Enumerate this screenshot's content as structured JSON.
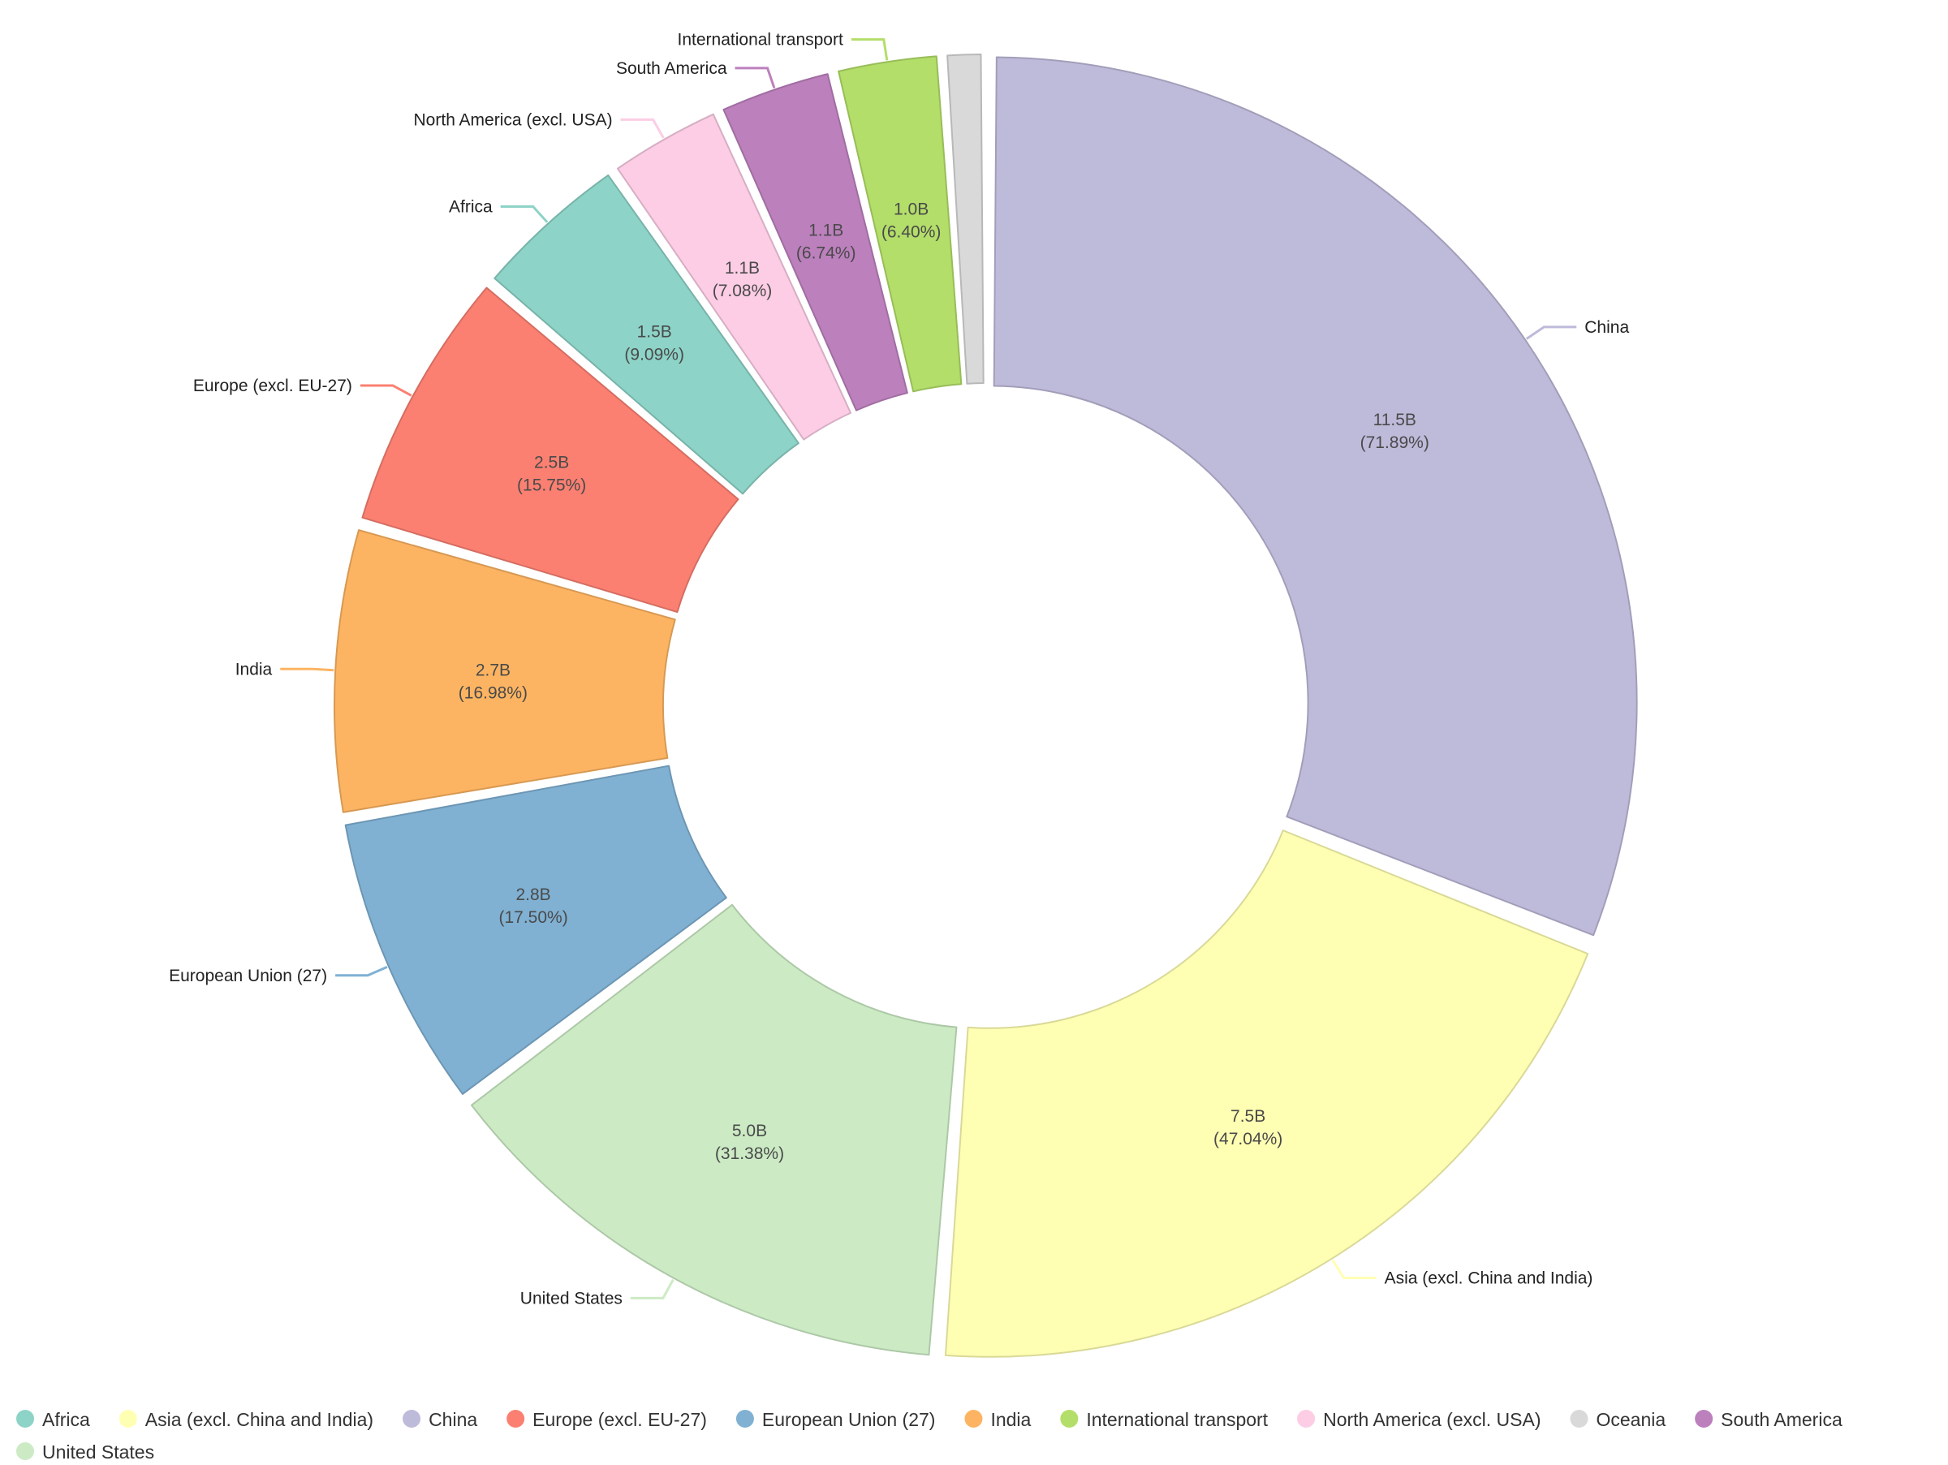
{
  "chart_data": {
    "type": "donut",
    "categories": [
      "Africa",
      "Asia (excl. China and India)",
      "China",
      "Europe (excl. EU-27)",
      "European Union (27)",
      "India",
      "International transport",
      "North America (excl. USA)",
      "Oceania",
      "South America",
      "United States"
    ],
    "slices": [
      {
        "name": "China",
        "value": 11.5,
        "value_label": "11.5B",
        "percent_label": "(71.89%)",
        "color": "#bebada"
      },
      {
        "name": "Asia (excl. China and India)",
        "value": 7.5,
        "value_label": "7.5B",
        "percent_label": "(47.04%)",
        "color": "#ffffb3"
      },
      {
        "name": "United States",
        "value": 5.0,
        "value_label": "5.0B",
        "percent_label": "(31.38%)",
        "color": "#ccebc5"
      },
      {
        "name": "European Union (27)",
        "value": 2.8,
        "value_label": "2.8B",
        "percent_label": "(17.50%)",
        "color": "#80b1d3"
      },
      {
        "name": "India",
        "value": 2.7,
        "value_label": "2.7B",
        "percent_label": "(16.98%)",
        "color": "#fdb462"
      },
      {
        "name": "Europe (excl. EU-27)",
        "value": 2.5,
        "value_label": "2.5B",
        "percent_label": "(15.75%)",
        "color": "#fb8072"
      },
      {
        "name": "Africa",
        "value": 1.5,
        "value_label": "1.5B",
        "percent_label": "(9.09%)",
        "color": "#8dd3c7"
      },
      {
        "name": "North America (excl. USA)",
        "value": 1.1,
        "value_label": "1.1B",
        "percent_label": "(7.08%)",
        "color": "#fccde5"
      },
      {
        "name": "South America",
        "value": 1.1,
        "value_label": "1.1B",
        "percent_label": "(6.74%)",
        "color": "#bc80bd"
      },
      {
        "name": "International transport",
        "value": 1.0,
        "value_label": "1.0B",
        "percent_label": "(6.40%)",
        "color": "#b3de69"
      },
      {
        "name": "Oceania",
        "value": 0.4,
        "value_label": "",
        "percent_label": "",
        "color": "#d9d9d9"
      }
    ],
    "legend": [
      {
        "label": "Africa",
        "color": "#8dd3c7"
      },
      {
        "label": "Asia (excl. China and India)",
        "color": "#ffffb3"
      },
      {
        "label": "China",
        "color": "#bebada"
      },
      {
        "label": "Europe (excl. EU-27)",
        "color": "#fb8072"
      },
      {
        "label": "European Union (27)",
        "color": "#80b1d3"
      },
      {
        "label": "India",
        "color": "#fdb462"
      },
      {
        "label": "International transport",
        "color": "#b3de69"
      },
      {
        "label": "North America (excl. USA)",
        "color": "#fccde5"
      },
      {
        "label": "Oceania",
        "color": "#d9d9d9"
      },
      {
        "label": "South America",
        "color": "#bc80bd"
      },
      {
        "label": "United States",
        "color": "#ccebc5"
      }
    ],
    "legend_position": "bottom-left"
  }
}
